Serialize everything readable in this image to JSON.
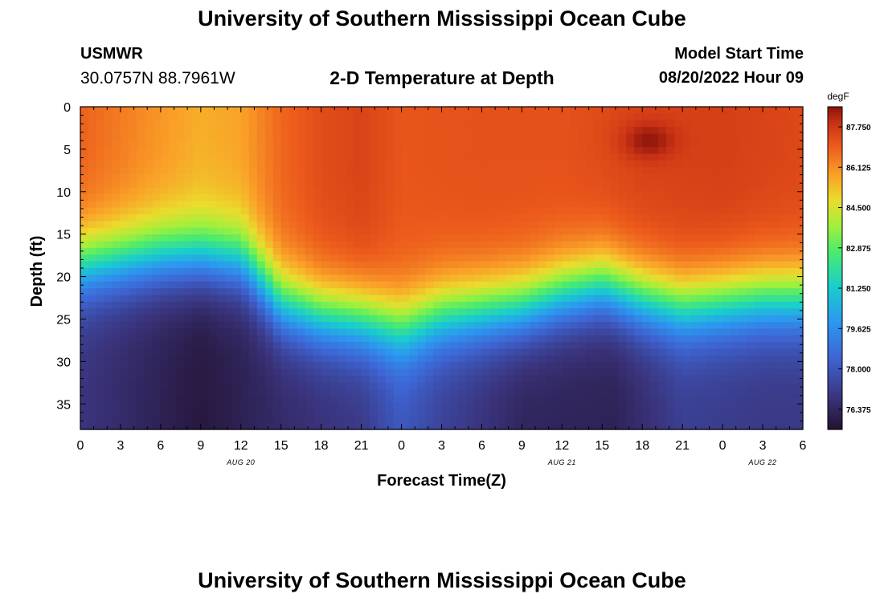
{
  "header": {
    "title": "University of Southern Mississippi Ocean Cube",
    "station": "USMWR",
    "coords": "30.0757N  88.7961W",
    "plot_title": "2-D Temperature at Depth",
    "model_label": "Model Start Time",
    "model_time": "08/20/2022 Hour 09"
  },
  "footer": {
    "title": "University of Southern Mississippi Ocean Cube"
  },
  "chart_data": {
    "type": "heatmap",
    "title": "2-D Temperature at Depth",
    "xlabel": "Forecast Time(Z)",
    "ylabel": "Depth (ft)",
    "x_range_hours": [
      0,
      54
    ],
    "y_range_ft": [
      0,
      38
    ],
    "x_ticks": [
      {
        "h": 0,
        "label": "0"
      },
      {
        "h": 3,
        "label": "3"
      },
      {
        "h": 6,
        "label": "6"
      },
      {
        "h": 9,
        "label": "9"
      },
      {
        "h": 12,
        "label": "12"
      },
      {
        "h": 15,
        "label": "15"
      },
      {
        "h": 18,
        "label": "18"
      },
      {
        "h": 21,
        "label": "21"
      },
      {
        "h": 24,
        "label": "0"
      },
      {
        "h": 27,
        "label": "3"
      },
      {
        "h": 30,
        "label": "6"
      },
      {
        "h": 33,
        "label": "9"
      },
      {
        "h": 36,
        "label": "12"
      },
      {
        "h": 39,
        "label": "15"
      },
      {
        "h": 42,
        "label": "18"
      },
      {
        "h": 45,
        "label": "21"
      },
      {
        "h": 48,
        "label": "0"
      },
      {
        "h": 51,
        "label": "3"
      },
      {
        "h": 54,
        "label": "6"
      }
    ],
    "y_ticks": [
      0,
      5,
      10,
      15,
      20,
      25,
      30,
      35
    ],
    "date_labels": [
      {
        "h": 12,
        "label": "AUG 20"
      },
      {
        "h": 36,
        "label": "AUG 21"
      },
      {
        "h": 51,
        "label": "AUG 22"
      }
    ],
    "colorbar": {
      "unit": "degF",
      "min": 75.56,
      "max": 88.56,
      "ticks": [
        "87.750",
        "86.125",
        "84.500",
        "82.875",
        "81.250",
        "79.625",
        "78.000",
        "76.375"
      ]
    },
    "thermocline_depth_ft": [
      {
        "h": 0,
        "d": 18.5
      },
      {
        "h": 3,
        "d": 18.0
      },
      {
        "h": 6,
        "d": 17.5
      },
      {
        "h": 9,
        "d": 17.5
      },
      {
        "h": 12,
        "d": 18.0
      },
      {
        "h": 13,
        "d": 19.5
      },
      {
        "h": 15,
        "d": 23.0
      },
      {
        "h": 18,
        "d": 24.5
      },
      {
        "h": 21,
        "d": 25.0
      },
      {
        "h": 24,
        "d": 26.0
      },
      {
        "h": 27,
        "d": 24.5
      },
      {
        "h": 30,
        "d": 24.0
      },
      {
        "h": 33,
        "d": 23.5
      },
      {
        "h": 36,
        "d": 22.0
      },
      {
        "h": 39,
        "d": 21.0
      },
      {
        "h": 42,
        "d": 22.5
      },
      {
        "h": 45,
        "d": 23.5
      },
      {
        "h": 48,
        "d": 23.0
      },
      {
        "h": 51,
        "d": 22.5
      },
      {
        "h": 54,
        "d": 22.5
      }
    ],
    "surface_temp_degF": [
      {
        "h": 0,
        "t": 86.9
      },
      {
        "h": 6,
        "t": 86.0
      },
      {
        "h": 9,
        "t": 85.6
      },
      {
        "h": 12,
        "t": 85.8
      },
      {
        "h": 15,
        "t": 86.8
      },
      {
        "h": 18,
        "t": 87.3
      },
      {
        "h": 21,
        "t": 87.5
      },
      {
        "h": 24,
        "t": 87.1
      },
      {
        "h": 30,
        "t": 87.2
      },
      {
        "h": 36,
        "t": 87.2
      },
      {
        "h": 42,
        "t": 87.5
      },
      {
        "h": 48,
        "t": 87.6
      },
      {
        "h": 54,
        "t": 87.4
      }
    ],
    "bottom_temp_degF": [
      {
        "h": 0,
        "t": 76.9
      },
      {
        "h": 9,
        "t": 75.8
      },
      {
        "h": 15,
        "t": 76.5
      },
      {
        "h": 21,
        "t": 77.0
      },
      {
        "h": 24,
        "t": 78.0
      },
      {
        "h": 27,
        "t": 77.3
      },
      {
        "h": 33,
        "t": 76.3
      },
      {
        "h": 40,
        "t": 76.2
      },
      {
        "h": 45,
        "t": 77.2
      },
      {
        "h": 51,
        "t": 77.0
      },
      {
        "h": 54,
        "t": 77.0
      }
    ],
    "warm_spot": {
      "h": 42.5,
      "d": 4.0,
      "t": 88.5
    }
  }
}
